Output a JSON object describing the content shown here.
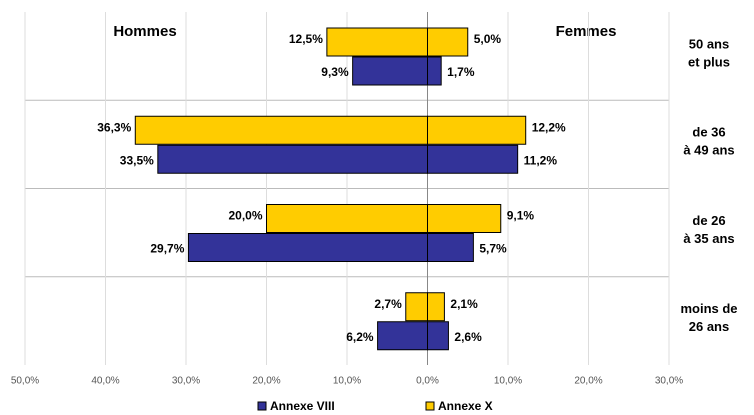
{
  "chart_data": {
    "type": "pyramid",
    "left_label": "Hommes",
    "right_label": "Femmes",
    "categories": [
      [
        "50 ans",
        "et plus"
      ],
      [
        "de 36",
        "à 49 ans"
      ],
      [
        "de 26",
        "à  35 ans"
      ],
      [
        "moins de",
        "26 ans"
      ]
    ],
    "series": [
      {
        "name": "Annexe VIII",
        "color": "#333399",
        "hommes": [
          -9.3,
          -33.5,
          -29.7,
          -6.2
        ],
        "hommes_labels": [
          "9,3%",
          "33,5%",
          "29,7%",
          "6,2%"
        ],
        "femmes": [
          1.7,
          11.2,
          5.7,
          2.6
        ],
        "femmes_labels": [
          "1,7%",
          "11,2%",
          "5,7%",
          "2,6%"
        ]
      },
      {
        "name": "Annexe X",
        "color": "#ffcc00",
        "hommes": [
          -12.5,
          -36.3,
          -20.0,
          -2.7
        ],
        "hommes_labels": [
          "12,5%",
          "36,3%",
          "20,0%",
          "2,7%"
        ],
        "femmes": [
          5.0,
          12.2,
          9.1,
          2.1
        ],
        "femmes_labels": [
          "5,0%",
          "12,2%",
          "9,1%",
          "2,1%"
        ]
      }
    ],
    "xlim": [
      -50,
      30
    ],
    "xticks": [
      {
        "value": -50,
        "label": "50,0%"
      },
      {
        "value": -40,
        "label": "40,0%"
      },
      {
        "value": -30,
        "label": "30,0%"
      },
      {
        "value": -20,
        "label": "20,0%"
      },
      {
        "value": -10,
        "label": "10,0%"
      },
      {
        "value": 0,
        "label": "0,0%"
      },
      {
        "value": 10,
        "label": "10,0%"
      },
      {
        "value": 20,
        "label": "20,0%"
      },
      {
        "value": 30,
        "label": "30,0%"
      }
    ],
    "grid": true
  }
}
